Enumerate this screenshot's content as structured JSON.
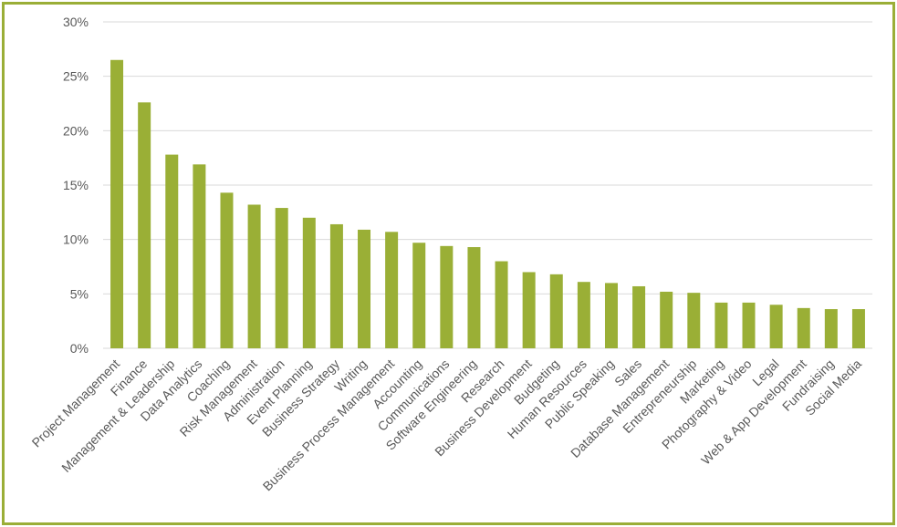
{
  "colors": {
    "bar": "#9aaf36",
    "frame": "#9aae37",
    "grid": "#d9d9d9",
    "text": "#595959"
  },
  "chart_data": {
    "type": "bar",
    "title": "",
    "xlabel": "",
    "ylabel": "",
    "ylim": [
      0,
      30
    ],
    "yticks": [
      0,
      5,
      10,
      15,
      20,
      25,
      30
    ],
    "ytick_labels": [
      "0%",
      "5%",
      "10%",
      "15%",
      "20%",
      "25%",
      "30%"
    ],
    "grid": true,
    "legend": "none",
    "categories": [
      "Project Management",
      "Finance",
      "Management & Leadership",
      "Data Analytics",
      "Coaching",
      "Risk Management",
      "Administration",
      "Event Planning",
      "Business Strategy",
      "Writing",
      "Business Process Management",
      "Accounting",
      "Communications",
      "Software Engineering",
      "Research",
      "Business Development",
      "Budgeting",
      "Human Resources",
      "Public Speaking",
      "Sales",
      "Database Management",
      "Entrepreneurship",
      "Marketing",
      "Photography & Video",
      "Legal",
      "Web & App Development",
      "Fundraising",
      "Social Media"
    ],
    "values": [
      26.5,
      22.6,
      17.8,
      16.9,
      14.3,
      13.2,
      12.9,
      12.0,
      11.4,
      10.9,
      10.7,
      9.7,
      9.4,
      9.3,
      8.0,
      7.0,
      6.8,
      6.1,
      6.0,
      5.7,
      5.2,
      5.1,
      4.2,
      4.2,
      4.0,
      3.7,
      3.6,
      3.6
    ]
  }
}
